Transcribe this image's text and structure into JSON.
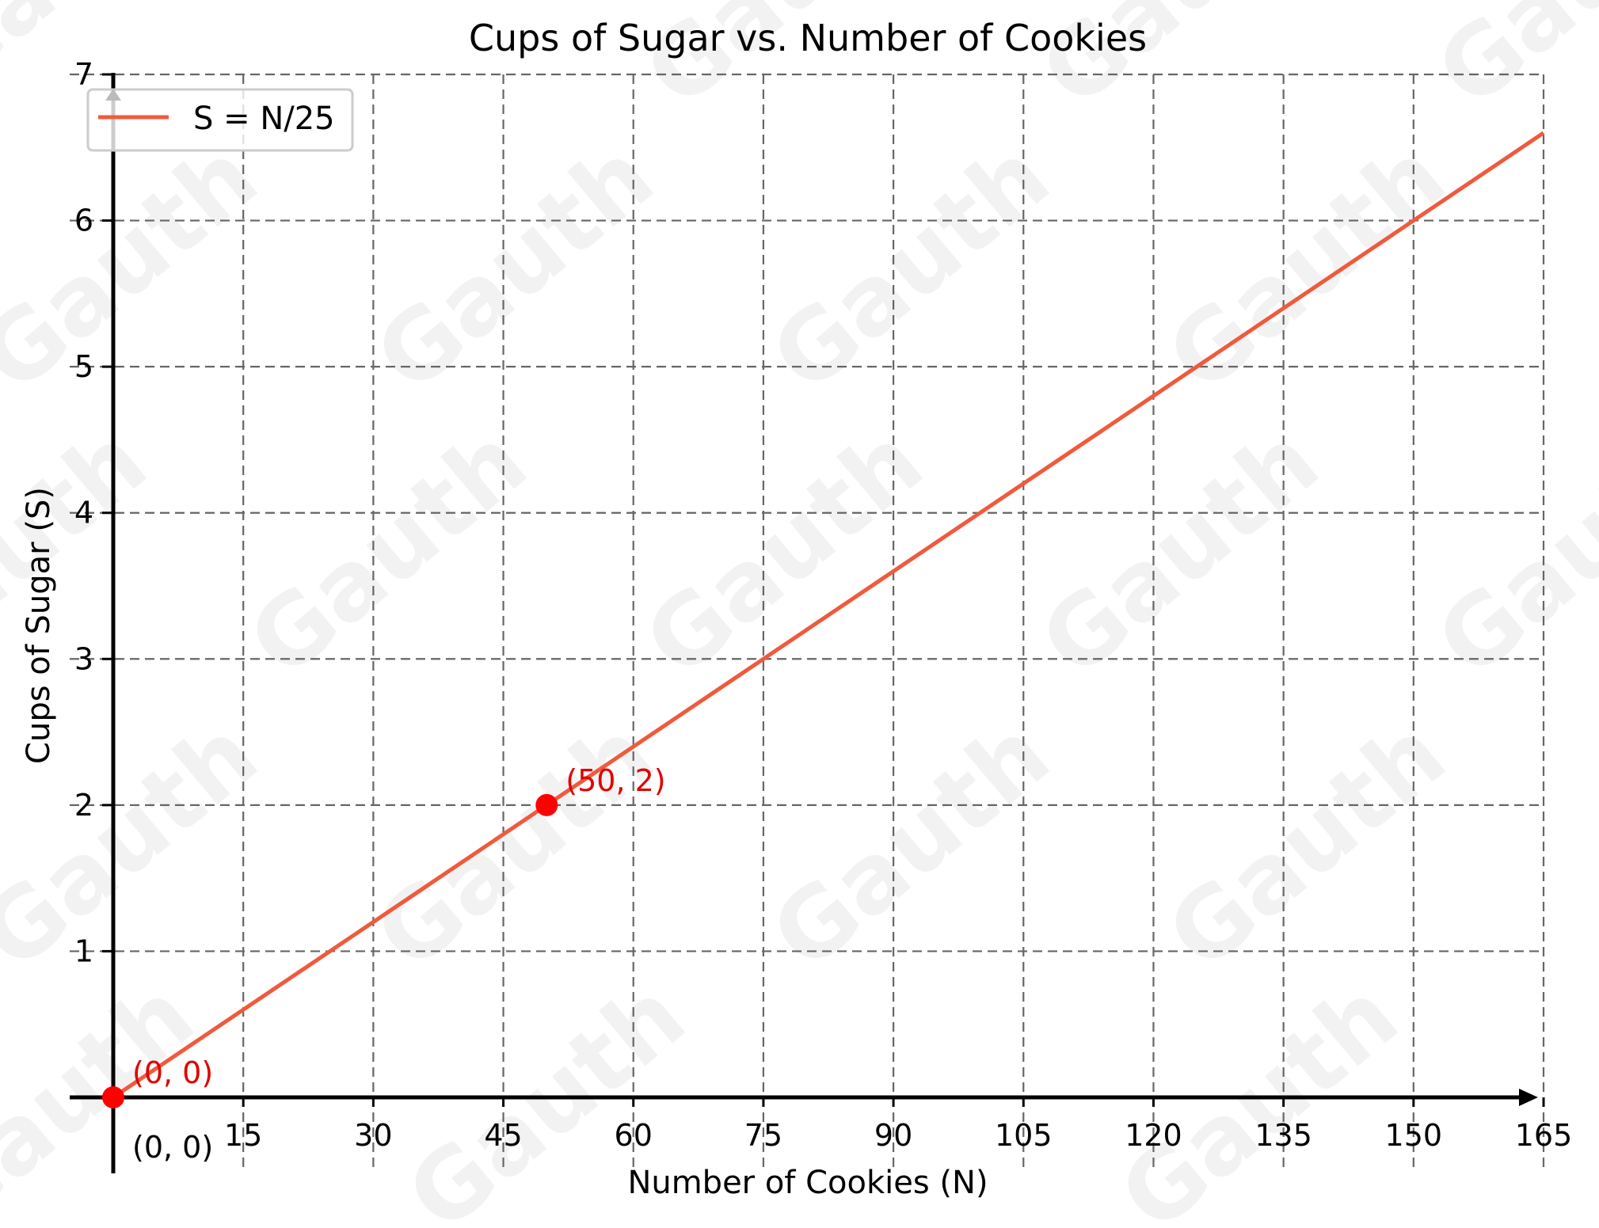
{
  "chart_data": {
    "type": "line",
    "title": "Cups of Sugar vs. Number of Cookies",
    "xlabel": "Number of Cookies (N)",
    "ylabel": "Cups of Sugar (S)",
    "xlim": [
      0,
      165
    ],
    "ylim": [
      0,
      7
    ],
    "x_ticks": [
      15,
      30,
      45,
      60,
      75,
      90,
      105,
      120,
      135,
      150,
      165
    ],
    "y_ticks": [
      1,
      2,
      3,
      4,
      5,
      6,
      7
    ],
    "grid": true,
    "legend_position": "upper left",
    "series": [
      {
        "name": "S = N/25",
        "color": "#f05a3c",
        "x": [
          0,
          165
        ],
        "y": [
          0,
          6.6
        ]
      }
    ],
    "points": [
      {
        "x": 0,
        "y": 0,
        "label": "(0, 0)",
        "color": "#ff0000"
      },
      {
        "x": 50,
        "y": 2,
        "label": "(50, 2)",
        "color": "#ff0000"
      }
    ],
    "annotations": [
      {
        "text": "(0, 0)",
        "x": 0,
        "y": 0,
        "color": "#000000",
        "note": "origin label below axis"
      }
    ]
  },
  "watermark": "Gauth"
}
